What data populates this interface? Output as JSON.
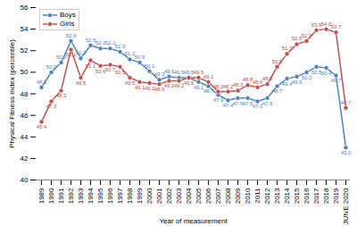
{
  "chart_data": {
    "type": "line",
    "x_label": "Year of measurement",
    "y_label": "Physical Fitness Index (percentile)",
    "categories": [
      "1989",
      "1990",
      "1991",
      "1992",
      "1993",
      "1994",
      "1995",
      "1996",
      "1997",
      "1998",
      "1999",
      "2000",
      "2001",
      "2002",
      "2003",
      "2004",
      "2005",
      "2006",
      "2007",
      "2008",
      "2009",
      "2010",
      "2011",
      "2012",
      "2013",
      "2014",
      "2015",
      "2016",
      "2017",
      "2018",
      "2019",
      "JUNE 2020"
    ],
    "series": [
      {
        "name": "Boys",
        "color": "#4f81bd",
        "marker": "circle",
        "values": [
          48.6,
          50.0,
          50.9,
          52.9,
          51.3,
          52.5,
          52.2,
          52.2,
          51.9,
          51.2,
          50.9,
          50.1,
          49.3,
          49.6,
          49.5,
          49.5,
          49.1,
          48.7,
          47.9,
          47.4,
          47.6,
          47.6,
          47.3,
          47.6,
          48.7,
          49.4,
          49.6,
          50.0,
          50.5,
          50.4,
          49.7,
          43.0
        ],
        "value_labels": [
          "48.6",
          "50.0",
          "50.9",
          "52.9",
          "51.3",
          "52.5",
          "52.2",
          "52.2",
          "51.9",
          "51.2",
          "50.9",
          "50.1",
          "49.3",
          "49.6",
          "49.5",
          "49.5",
          "49.1",
          "48.7",
          "47.9",
          "47.4",
          "47.6",
          "47.6",
          "47.3",
          "47.6",
          "48.7",
          "49.4",
          "49.6",
          "50.0",
          "50.5",
          "50.4",
          "49.7",
          "43.0"
        ]
      },
      {
        "name": "Girls",
        "color": "#c0504d",
        "marker": "circle",
        "values": [
          45.4,
          47.3,
          48.3,
          52.1,
          49.5,
          51.1,
          50.6,
          50.7,
          50.5,
          49.5,
          49.1,
          49.0,
          48.9,
          49.2,
          49.2,
          49.5,
          49.5,
          49.1,
          48.2,
          48.2,
          48.3,
          48.8,
          48.6,
          48.9,
          50.5,
          51.7,
          52.6,
          52.9,
          53.9,
          54.0,
          53.7,
          46.7
        ],
        "value_labels": [
          "45.4",
          "47.3",
          "48.3",
          "52.1",
          "49.5",
          "51.1",
          "50.6",
          "50.7",
          "50.5",
          "49.5",
          "49.1",
          "49.0",
          "48.9",
          "49.2",
          "49.2",
          "49.5",
          "49.5",
          "49.1",
          "48.2",
          "48.2",
          "48.3",
          "48.8",
          "48.6",
          "48.9",
          "50.5",
          "51.7",
          "52.6",
          "52.9",
          "53.9",
          "54.0",
          "53.7",
          "46.7"
        ]
      }
    ],
    "ylim": [
      40,
      56
    ],
    "yticks": [
      40,
      42,
      44,
      46,
      48,
      50,
      52,
      54,
      56
    ],
    "grid": false,
    "legend": "top-left",
    "data_labels": true
  }
}
